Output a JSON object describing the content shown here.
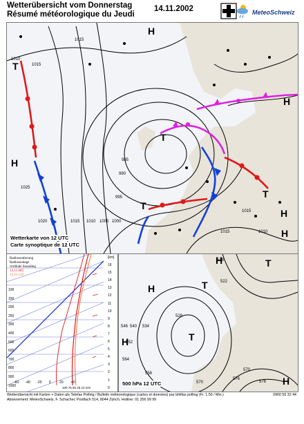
{
  "header": {
    "title_de": "Wetterübersicht vom Donnerstag",
    "title_fr": "Résumé météorologique du Jeudi",
    "date": "14.11.2002",
    "brand": "MeteoSchweiz"
  },
  "main_map": {
    "caption_de": "Wetterkarte von 12 UTC",
    "caption_fr": "Carte synoptique de 12 UTC",
    "pressure_centers": [
      "H",
      "T",
      "H",
      "T",
      "T",
      "T",
      "H",
      "H",
      "H"
    ],
    "isobar_labels": [
      "1015",
      "1010",
      "1015",
      "1020",
      "1015",
      "1010",
      "1005",
      "1000",
      "995",
      "990",
      "985",
      "1025",
      "1020",
      "1015",
      "1010",
      "1005",
      "1000",
      "995",
      "1015",
      "1015",
      "1010"
    ]
  },
  "sounding": {
    "legend": [
      "Radiosondierung",
      "Radiosondage",
      "vertikale Sounding",
      "14.11.00Z",
      "14.11.12Z"
    ],
    "pressure_labels": [
      "100",
      "150",
      "200",
      "250",
      "300",
      "400",
      "500",
      "600",
      "700",
      "800",
      "900",
      "1000"
    ],
    "height_labels": [
      "[km]",
      "16",
      "15",
      "14",
      "13",
      "12",
      "11",
      "10",
      "9",
      "8",
      "7",
      "6",
      "5",
      "4",
      "3",
      "2",
      "1",
      "0"
    ],
    "temp_labels": [
      "-60",
      "-40",
      "-20",
      "0",
      "20",
      "40"
    ],
    "wind_labels": [
      "100 75 50 25 10",
      "m/s"
    ]
  },
  "upper_map": {
    "caption": "500 hPa 12 UTC",
    "centers": [
      "H",
      "T",
      "T",
      "H",
      "H",
      "T",
      "H"
    ],
    "contour_labels": [
      "528",
      "522",
      "546",
      "540",
      "534",
      "528",
      "552",
      "558",
      "564",
      "570",
      "576",
      "570",
      "576"
    ]
  },
  "footer": {
    "line1": "Wetterübersicht mit Karten + Daten als Telefax Polling / Bulletin météorologique (cartes et données) par téléfax polling (Fr. 1.50 / Min.)",
    "phone": "0900 55 32 44",
    "line2": "Abonnement: MeteoSchweiz, F. Schacher, Postfach 514, 8044 Zürich, Hotline: 01 256 99 99"
  },
  "colors": {
    "cold_front": "#1040d8",
    "warm_front": "#e01818",
    "occluded": "#e020e0",
    "isobar": "#000000",
    "brand": "#1b3d8a"
  }
}
